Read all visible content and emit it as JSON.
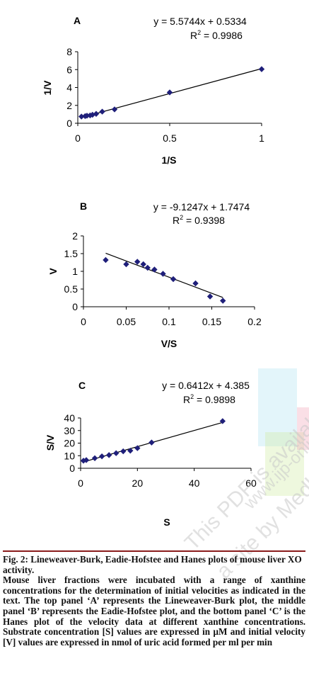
{
  "chart_data": [
    {
      "type": "scatter",
      "panel_label": "A",
      "equation": "y = 5.5744x + 0.5334",
      "r2_prefix": "R",
      "r2_sup": "2",
      "r2_value": " = 0.9986",
      "xlabel": "1/S",
      "ylabel": "1/V",
      "xlim": [
        0,
        1
      ],
      "ylim": [
        0,
        8
      ],
      "xticks": [
        0,
        0.5,
        1
      ],
      "yticks": [
        0,
        2,
        4,
        6,
        8
      ],
      "x": [
        0.02,
        0.04,
        0.05,
        0.067,
        0.08,
        0.1,
        0.133,
        0.2,
        0.5,
        1.0
      ],
      "y": [
        0.75,
        0.8,
        0.85,
        0.88,
        0.95,
        1.05,
        1.3,
        1.55,
        3.45,
        6.05
      ],
      "trendline": {
        "slope": 5.5744,
        "intercept": 0.5334,
        "x_range": [
          0.02,
          1.0
        ]
      },
      "marker_color": "#1f1f7a",
      "grid": false
    },
    {
      "type": "scatter",
      "panel_label": "B",
      "equation": "y = -9.1247x + 1.7474",
      "r2_prefix": "R",
      "r2_sup": "2",
      "r2_value": " = 0.9398",
      "xlabel": "V/S",
      "ylabel": "V",
      "xlim": [
        0,
        0.2
      ],
      "ylim": [
        0,
        2
      ],
      "xticks": [
        0,
        0.05,
        0.1,
        0.15,
        0.2
      ],
      "yticks": [
        0,
        0.5,
        1,
        1.5,
        2
      ],
      "x": [
        0.026,
        0.05,
        0.063,
        0.07,
        0.075,
        0.083,
        0.093,
        0.105,
        0.131,
        0.148,
        0.163
      ],
      "y": [
        1.32,
        1.2,
        1.27,
        1.2,
        1.1,
        1.05,
        0.93,
        0.78,
        0.66,
        0.29,
        0.17
      ],
      "trendline": {
        "slope": -9.1247,
        "intercept": 1.7474,
        "x_range": [
          0.026,
          0.163
        ]
      },
      "marker_color": "#1f1f7a",
      "grid": false
    },
    {
      "type": "scatter",
      "panel_label": "C",
      "equation": "y = 0.6412x + 4.385",
      "r2_prefix": "R",
      "r2_sup": "2",
      "r2_value": " = 0.9898",
      "xlabel": "S",
      "ylabel": "S/V",
      "xlim": [
        0,
        60
      ],
      "ylim": [
        0,
        40
      ],
      "xticks": [
        0,
        20,
        40,
        60
      ],
      "yticks": [
        0,
        10,
        20,
        30,
        40
      ],
      "x": [
        1,
        2,
        5,
        7.5,
        10,
        12.5,
        15,
        17.5,
        20,
        25,
        50
      ],
      "y": [
        6,
        6.5,
        8,
        9.5,
        10.5,
        12,
        13.5,
        14,
        16,
        20.5,
        37.5
      ],
      "trendline": {
        "slope": 0.6412,
        "intercept": 4.385,
        "x_range": [
          1,
          50
        ]
      },
      "marker_color": "#1f1f7a",
      "grid": false
    }
  ],
  "caption": {
    "title": "Fig. 2: Lineweaver-Burk, Eadie-Hofstee and Hanes plots of mouse liver XO activity.",
    "body_before_mu": "Mouse liver fractions were incubated with a range of xanthine concentrations for the determination of initial velocities as indicated in the text. The top panel ‘A’ represents the Lineweaver-Burk plot, the middle panel ‘B’ represents the Eadie-Hofstee plot, and the bottom panel ‘C’ is the Hanes plot of the velocity data at different xanthine concentrations. Substrate concentration [S] values are expressed in ",
    "mu": "μ",
    "body_after_mu": "M and initial velocity [V] values are expressed in nmol of uric acid formed per ml per min"
  },
  "watermark": {
    "line1": "This PDF is available for",
    "line2": "a site by Medknow",
    "line3": "www.ijp-online.com"
  }
}
